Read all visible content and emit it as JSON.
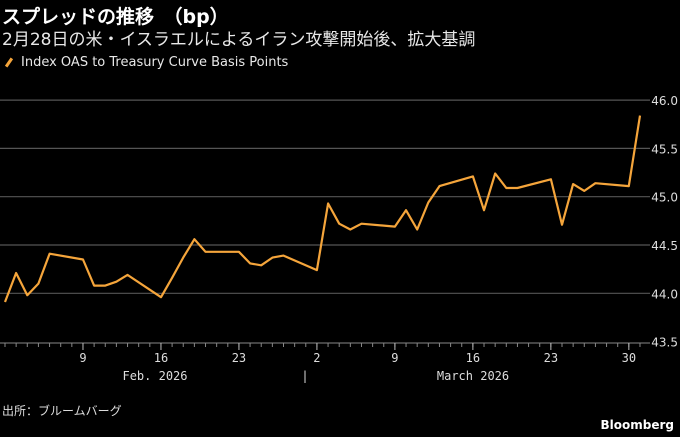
{
  "header": {
    "title": "スプレッドの推移　（bp）",
    "subtitle": "2月28日の米・イスラエルによるイラン攻撃開始後、拡大基調"
  },
  "footer": {
    "source": "出所：ブルームバーグ",
    "brand": "Bloomberg"
  },
  "colors": {
    "line": "#f5a53b",
    "grid": "#555555",
    "background": "#000000"
  },
  "chart_data": {
    "type": "line",
    "title": "スプレッドの推移　（bp）",
    "ylabel": "bp",
    "ylim": [
      43.5,
      46.0
    ],
    "yticks": [
      "43.5",
      "44.0",
      "44.5",
      "45.0",
      "45.5",
      "46.0"
    ],
    "grid": true,
    "legend_position": "top-left",
    "x_tick_labels": [
      {
        "day": 9,
        "label": "9"
      },
      {
        "day": 16,
        "label": "16"
      },
      {
        "day": 23,
        "label": "23"
      },
      {
        "day": 30,
        "label": "2"
      },
      {
        "day": 37,
        "label": "9"
      },
      {
        "day": 44,
        "label": "16"
      },
      {
        "day": 51,
        "label": "23"
      },
      {
        "day": 58,
        "label": "30"
      }
    ],
    "month_labels": [
      "Feb. 2026",
      "March 2026"
    ],
    "month_separator": "|",
    "series": [
      {
        "name": "Index OAS to Treasury Curve Basis Points",
        "x": [
          "2026-02-02",
          "2026-02-03",
          "2026-02-04",
          "2026-02-05",
          "2026-02-06",
          "2026-02-09",
          "2026-02-10",
          "2026-02-11",
          "2026-02-12",
          "2026-02-13",
          "2026-02-16",
          "2026-02-17",
          "2026-02-18",
          "2026-02-19",
          "2026-02-20",
          "2026-02-23",
          "2026-02-24",
          "2026-02-25",
          "2026-02-26",
          "2026-02-27",
          "2026-03-02",
          "2026-03-03",
          "2026-03-04",
          "2026-03-05",
          "2026-03-06",
          "2026-03-09",
          "2026-03-10",
          "2026-03-11",
          "2026-03-12",
          "2026-03-13",
          "2026-03-16",
          "2026-03-17",
          "2026-03-18",
          "2026-03-19",
          "2026-03-20",
          "2026-03-23",
          "2026-03-24",
          "2026-03-25",
          "2026-03-26",
          "2026-03-27",
          "2026-03-30",
          "2026-03-31"
        ],
        "day": [
          2,
          3,
          4,
          5,
          6,
          9,
          10,
          11,
          12,
          13,
          16,
          17,
          18,
          19,
          20,
          23,
          24,
          25,
          26,
          27,
          30,
          31,
          32,
          33,
          34,
          37,
          38,
          39,
          40,
          41,
          44,
          45,
          46,
          47,
          48,
          51,
          52,
          53,
          54,
          55,
          58,
          59
        ],
        "values": [
          43.91,
          44.21,
          43.98,
          44.1,
          44.41,
          44.35,
          44.08,
          44.08,
          44.12,
          44.19,
          43.96,
          44.16,
          44.37,
          44.56,
          44.43,
          44.43,
          44.31,
          44.29,
          44.37,
          44.39,
          44.24,
          44.93,
          44.72,
          44.66,
          44.72,
          44.69,
          44.86,
          44.66,
          44.94,
          45.11,
          45.21,
          44.86,
          45.24,
          45.09,
          45.09,
          45.18,
          44.71,
          45.13,
          45.06,
          45.14,
          45.11,
          45.84
        ]
      }
    ]
  }
}
